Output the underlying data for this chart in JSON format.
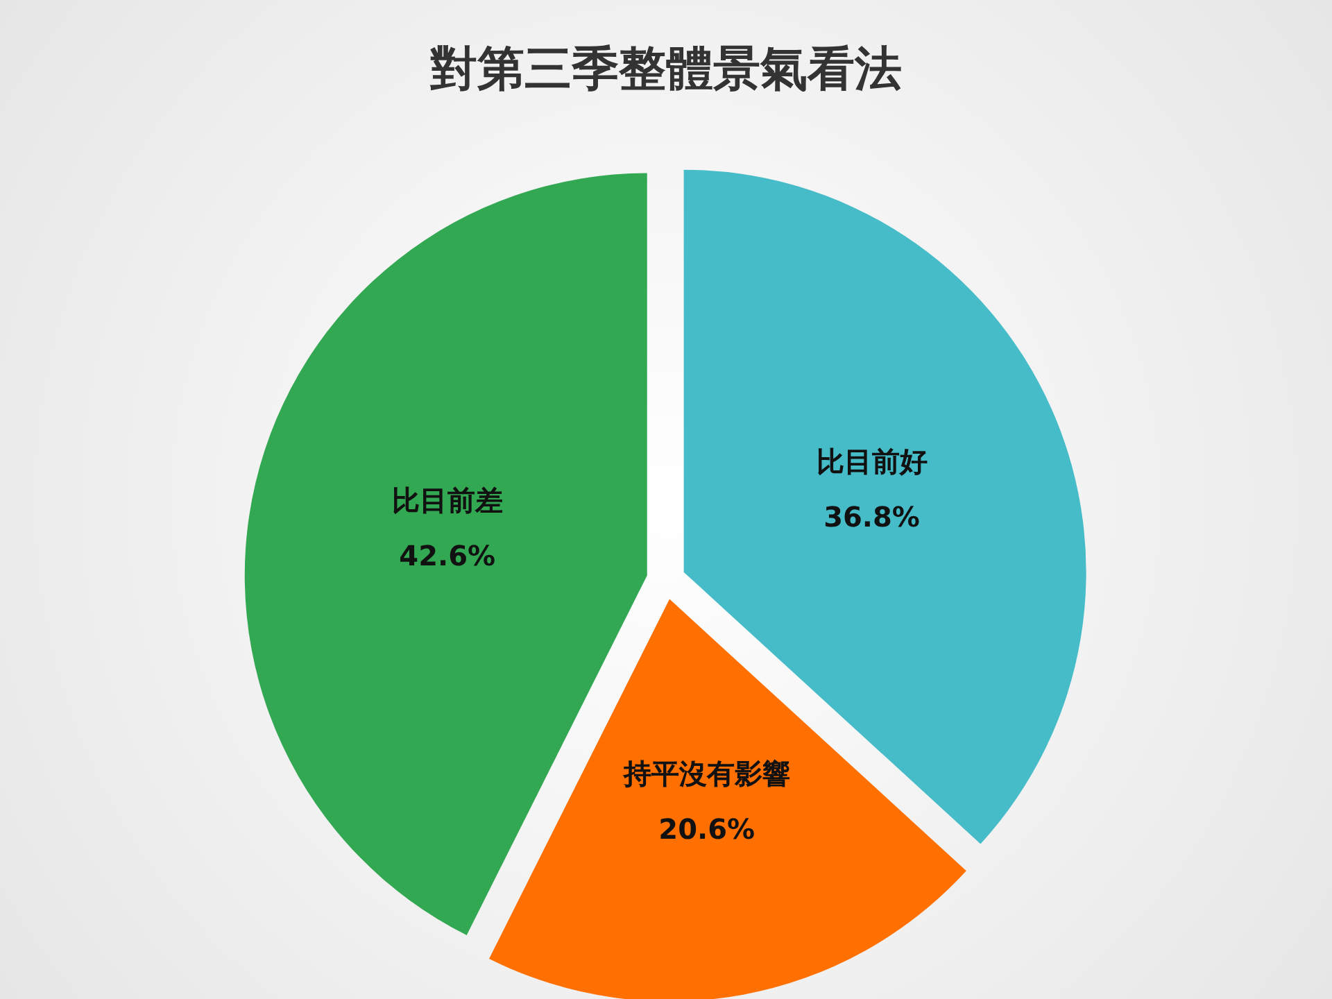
{
  "chart_data": {
    "type": "pie",
    "title": "對第三季整體景氣看法",
    "categories": [
      "比目前好",
      "持平沒有影響",
      "比目前差"
    ],
    "values": [
      36.8,
      20.6,
      42.6
    ],
    "colors": [
      "#45bcc8",
      "#ff7000",
      "#33a853"
    ],
    "value_labels": [
      "36.8%",
      "20.6%",
      "42.6%"
    ],
    "legend": false
  }
}
